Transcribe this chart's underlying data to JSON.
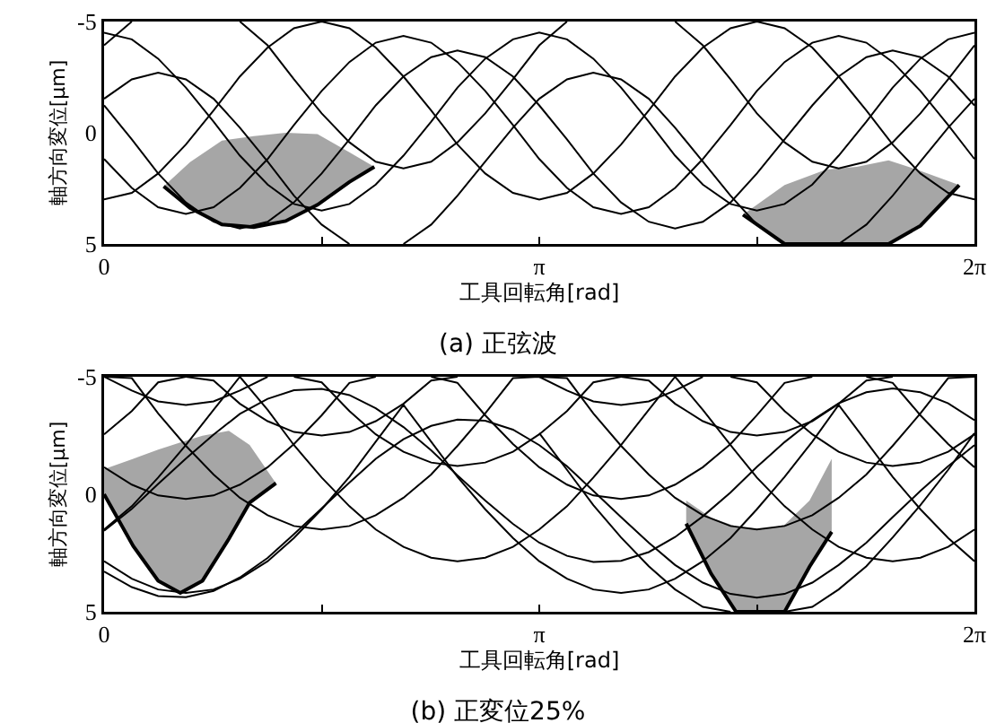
{
  "chart_data": [
    {
      "type": "line",
      "title": "(a) 正弦波",
      "xlabel": "工具回転角[rad]",
      "ylabel": "軸方向変位[μm]",
      "xlim": [
        0,
        6.28
      ],
      "xticks": [
        {
          "value": 0,
          "label": "0"
        },
        {
          "value": 1.57,
          "label": null
        },
        {
          "value": 3.14,
          "label": "π"
        },
        {
          "value": 4.71,
          "label": null
        },
        {
          "value": 6.28,
          "label": "2π"
        }
      ],
      "ylim": [
        5,
        -5
      ],
      "yticks": [
        -5,
        0,
        5
      ],
      "x": [
        0,
        0.2,
        0.39,
        0.59,
        0.79,
        0.98,
        1.18,
        1.37,
        1.57,
        1.77,
        1.96,
        2.16,
        2.36,
        2.55,
        2.75,
        2.95,
        3.14,
        3.34,
        3.53,
        3.73,
        3.93,
        4.12,
        4.32,
        4.52,
        4.71,
        4.91,
        5.11,
        5.3,
        5.5,
        5.69,
        5.89,
        6.09,
        6.28
      ],
      "series": [
        {
          "color": "#000000",
          "x": [
            0.43,
            0.62,
            0.85,
            1.08,
            1.31,
            1.54,
            1.77,
            1.95
          ],
          "values": [
            2.41,
            3.38,
            4.12,
            4.24,
            3.97,
            3.24,
            2.21,
            1.53
          ],
          "upper": [
            2.41,
            3.38,
            4.12,
            4.24,
            3.97,
            3.24,
            2.21,
            1.53
          ],
          "lower": [
            2.41,
            1.32,
            0.35,
            0.15,
            0,
            0.06,
            0.88,
            1.53
          ]
        },
        {
          "color": "#000000",
          "x": [
            4.61,
            4.91,
            5.21,
            5.43,
            5.66,
            5.89,
            6.17
          ],
          "values": [
            3.68,
            5,
            5,
            5,
            5,
            4.18,
            2.35
          ],
          "upper": [
            3.68,
            5,
            5,
            5,
            5,
            4.18,
            2.35
          ],
          "lower": [
            3.68,
            2.35,
            1.65,
            1.53,
            1.24,
            1.71,
            2.35
          ]
        },
        {
          "color": "#000000",
          "values": [
            -1.23,
            0.3,
            1.83,
            3.13,
            4.0,
            4.3,
            4.0,
            3.13,
            1.83,
            0.3,
            -1.23,
            -2.53,
            -3.4,
            -3.7,
            -3.4,
            -2.53,
            -1.23,
            0.3,
            1.83,
            3.13,
            4.0,
            4.3,
            4.0,
            3.13,
            1.83,
            0.3,
            -1.23,
            -2.53,
            -3.4,
            -3.7,
            -3.4,
            -2.53,
            -1.23
          ]
        },
        {
          "color": "#000000",
          "values": [
            3,
            2.7,
            1.83,
            0.53,
            -1,
            -2.53,
            -3.83,
            -4.7,
            -5,
            -4.7,
            -3.83,
            -2.53,
            -1,
            0.53,
            1.83,
            2.7,
            3,
            2.7,
            1.83,
            0.53,
            -1,
            -2.53,
            -3.83,
            -4.7,
            -5,
            -4.7,
            -3.83,
            -2.53,
            -1,
            0.53,
            1.83,
            2.7,
            3
          ]
        },
        {
          "color": "#000000",
          "values": [
            1.18,
            2.48,
            3.35,
            3.65,
            3.35,
            2.48,
            1.18,
            -0.35,
            -1.88,
            -3.18,
            -4.05,
            -4.35,
            -4.05,
            -3.18,
            -1.88,
            -0.35,
            1.18,
            2.48,
            3.35,
            3.65,
            3.35,
            2.48,
            1.18,
            -0.35,
            -1.88,
            -3.18,
            -4.05,
            -4.35,
            -4.05,
            -3.18,
            -1.88,
            -0.35,
            1.18
          ]
        },
        {
          "color": "#000000",
          "values": [
            -3.93,
            -5,
            null,
            null,
            null,
            -5,
            -3.93,
            -2.4,
            -0.87,
            0.43,
            1.3,
            1.6,
            1.3,
            0.43,
            -0.87,
            -2.4,
            -3.93,
            -5,
            null,
            null,
            null,
            -5,
            -3.93,
            -2.4,
            -0.87,
            0.43,
            1.3,
            1.6,
            1.3,
            0.43,
            -0.87,
            -2.4,
            -3.93
          ]
        },
        {
          "color": "#000000",
          "values": [
            -4.5,
            -4.2,
            -3.33,
            -2.03,
            -0.5,
            1.03,
            2.33,
            3.2,
            3.5,
            3.2,
            2.33,
            1.03,
            -0.5,
            -2.03,
            -3.33,
            -4.2,
            -4.5,
            -4.2,
            -3.33,
            -2.03,
            -0.5,
            1.03,
            2.33,
            3.2,
            3.5,
            3.2,
            2.33,
            1.03,
            -0.5,
            -2.03,
            -3.33,
            -4.2,
            -4.5
          ]
        },
        {
          "color": "#000000",
          "values": [
            -1.53,
            -2.4,
            -2.7,
            -2.4,
            -1.53,
            -0.23,
            1.3,
            2.83,
            4.13,
            5,
            null,
            5,
            4.13,
            2.83,
            1.3,
            -0.23,
            -1.53,
            -2.4,
            -2.7,
            -2.4,
            -1.53,
            -0.23,
            1.3,
            2.83,
            4.13,
            5,
            null,
            5,
            4.13,
            2.83,
            1.3,
            -0.23,
            -1.53
          ]
        }
      ]
    },
    {
      "type": "line",
      "title": "(b) 正変位25%",
      "xlabel": "工具回転角[rad]",
      "ylabel": "軸方向変位[μm]",
      "xlim": [
        0,
        6.28
      ],
      "xticks": [
        {
          "value": 0,
          "label": "0"
        },
        {
          "value": 1.57,
          "label": null
        },
        {
          "value": 3.14,
          "label": "π"
        },
        {
          "value": 4.71,
          "label": null
        },
        {
          "value": 6.28,
          "label": "2π"
        }
      ],
      "ylim": [
        5,
        -5
      ],
      "yticks": [
        -5,
        0,
        5
      ],
      "x": [
        0,
        0.2,
        0.39,
        0.59,
        0.79,
        0.98,
        1.18,
        1.37,
        1.57,
        1.77,
        1.96,
        2.16,
        2.36,
        2.55,
        2.75,
        2.95,
        3.14,
        3.34,
        3.53,
        3.73,
        3.93,
        4.12,
        4.32,
        4.52,
        4.71,
        4.91,
        5.11,
        5.3,
        5.5,
        5.69,
        5.89,
        6.09,
        6.28
      ],
      "series": [
        {
          "color": "#000000",
          "x": [
            0,
            0.21,
            0.39,
            0.55,
            0.71,
            0.9,
            1.05,
            1.24
          ],
          "values": [
            0,
            2.2,
            3.68,
            4.2,
            3.68,
            1.9,
            0.36,
            -0.47
          ],
          "upper": [
            0,
            2.2,
            3.68,
            4.2,
            3.68,
            1.9,
            0.36,
            -0.47
          ],
          "lower": [
            -1.07,
            -1.51,
            -1.9,
            -2.2,
            -2.49,
            -2.7,
            -2.1,
            -0.47
          ]
        },
        {
          "color": "#000000",
          "x": [
            4.2,
            4.38,
            4.56,
            4.75,
            4.91,
            5.09,
            5.25
          ],
          "values": [
            1.25,
            3.38,
            5,
            5,
            5,
            3.08,
            1.6
          ],
          "upper": [
            1.25,
            3.38,
            5,
            5,
            5,
            3.08,
            1.6
          ],
          "lower": [
            0.27,
            1,
            1.36,
            1.5,
            1.3,
            0.27,
            -1.51
          ]
        },
        {
          "color": "#000000",
          "values": [
            2.85,
            3.59,
            4.05,
            4.2,
            4.05,
            3.59,
            2.85,
            1.86,
            0.64,
            -0.74,
            -2.24,
            -3.8,
            -2.24,
            -0.74,
            0.64,
            1.86,
            2.85,
            3.59,
            4.05,
            4.2,
            4.05,
            3.59,
            2.85,
            1.86,
            0.64,
            -0.74,
            -2.24,
            -3.8,
            -2.24,
            -0.74,
            0.64,
            1.86,
            2.85
          ]
        },
        {
          "color": "#000000",
          "values": [
            -1.15,
            -0.41,
            0.05,
            0.2,
            0.05,
            -0.41,
            -1.15,
            -2.14,
            -3.36,
            -4.74,
            -5,
            null,
            -5,
            -4.74,
            -3.36,
            -2.14,
            -1.15,
            -0.41,
            0.05,
            0.2,
            0.05,
            -0.41,
            -1.15,
            -2.14,
            -3.36,
            -4.74,
            -5,
            null,
            -5,
            -4.74,
            -3.36,
            -2.14,
            -1.15
          ]
        },
        {
          "color": "#000000",
          "values": [
            -5,
            -4.41,
            -3.95,
            -3.8,
            -3.95,
            -4.41,
            -5,
            null,
            null,
            null,
            null,
            null,
            null,
            null,
            null,
            null,
            -5,
            -4.41,
            -3.95,
            -3.8,
            -3.95,
            -4.41,
            -5,
            null,
            null,
            null,
            null,
            null,
            null,
            null,
            null,
            null,
            null
          ]
        },
        {
          "color": "#000000",
          "values": [
            -5,
            -4.94,
            -3.44,
            -2.06,
            -0.84,
            0.15,
            0.89,
            1.35,
            1.5,
            1.35,
            0.89,
            0.15,
            -0.84,
            -2.06,
            -3.44,
            -4.94,
            -5,
            -4.94,
            -3.44,
            -2.06,
            -0.84,
            0.15,
            0.89,
            1.35,
            1.5,
            1.35,
            0.89,
            0.15,
            -0.84,
            -2.06,
            -3.44,
            -4.94,
            -5
          ]
        },
        {
          "color": "#000000",
          "values": [
            null,
            null,
            null,
            -5,
            -4.84,
            -3.85,
            -3.11,
            -2.65,
            -2.5,
            -2.65,
            -3.11,
            -3.85,
            -4.84,
            -5,
            null,
            null,
            null,
            null,
            null,
            -5,
            -4.84,
            -3.85,
            -3.11,
            -2.65,
            -2.5,
            -2.65,
            -3.11,
            -3.85,
            -4.84,
            -5,
            null,
            null,
            null
          ]
        },
        {
          "color": "#000000",
          "values": [
            null,
            null,
            null,
            null,
            null,
            null,
            null,
            null,
            null,
            null,
            null,
            null,
            null,
            null,
            null,
            null,
            -2.6,
            -1.04,
            0.46,
            1.84,
            3.06,
            4.05,
            4.79,
            5,
            null,
            5,
            4.79,
            4.05,
            3.06,
            1.84,
            0.46,
            -1.04,
            -2.6
          ]
        },
        {
          "color": "#000000",
          "values": [
            1.5,
            0.51,
            -0.71,
            -2.09,
            -3.59,
            -5,
            -3.59,
            -2.09,
            -0.71,
            0.51,
            1.5,
            2.24,
            2.7,
            2.85,
            2.7,
            2.24,
            1.5,
            0.51,
            -0.71,
            -2.09,
            -3.59,
            -5,
            -3.59,
            -2.09,
            -0.71,
            0.51,
            1.5,
            2.24,
            2.7,
            2.85,
            2.7,
            2.24,
            1.5
          ]
        },
        {
          "color": "#000000",
          "values": [
            -2.55,
            -3.54,
            -4.76,
            -5,
            null,
            null,
            null,
            -5,
            -4.76,
            -3.54,
            -2.55,
            -1.81,
            -1.35,
            -1.2,
            -1.35,
            -1.81,
            -2.55,
            -3.54,
            -4.76,
            -5,
            null,
            null,
            null,
            -5,
            -4.76,
            -3.54,
            -2.55,
            -1.81,
            -1.35,
            -1.2,
            -1.35,
            -1.81,
            -2.55
          ]
        },
        {
          "color": "#000000",
          "values": [
            3.29,
            3.95,
            4.33,
            4.38,
            4.11,
            3.54,
            2.71,
            1.7,
            0.6,
            -0.5,
            -1.51,
            -2.34,
            -2.91,
            -3.18,
            -3.13,
            -2.75,
            -2.09,
            -1.19,
            -0.14,
            0.97,
            2.06,
            3.01,
            3.76,
            4.24,
            4.4,
            4.24,
            3.76,
            3.01,
            2.06,
            0.97,
            -0.14,
            -1.19,
            -2.09
          ]
        },
        {
          "color": "#000000",
          "values": [
            1.55,
            0.62,
            -0.44,
            -1.52,
            -2.54,
            -3.42,
            -4.06,
            -4.43,
            -4.48,
            -4.22,
            -3.66,
            -2.86,
            -1.87,
            -0.8,
            0.27,
            1.26,
            2.06,
            2.62,
            2.88,
            2.83,
            2.46,
            1.82,
            0.94,
            -0.08,
            -1.16,
            -2.22,
            -3.15,
            -3.87,
            -4.34,
            -4.5,
            -4.34,
            -3.87,
            -3.15
          ]
        }
      ]
    }
  ]
}
